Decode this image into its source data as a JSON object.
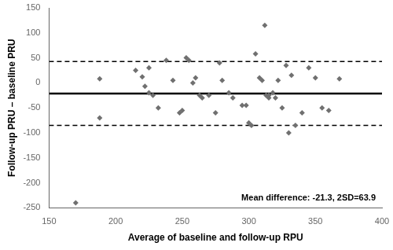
{
  "chart_data": {
    "type": "scatter",
    "x": [
      170,
      188,
      188,
      215,
      220,
      222,
      225,
      225,
      228,
      232,
      238,
      243,
      248,
      250,
      253,
      255,
      258,
      260,
      263,
      265,
      270,
      275,
      278,
      280,
      285,
      288,
      295,
      298,
      300,
      302,
      305,
      308,
      310,
      312,
      313,
      315,
      315,
      318,
      320,
      322,
      325,
      328,
      330,
      332,
      335,
      340,
      345,
      350,
      355,
      360,
      368
    ],
    "values": [
      -240,
      8,
      -70,
      25,
      12,
      -7,
      30,
      -20,
      -25,
      -50,
      45,
      5,
      -60,
      -55,
      50,
      45,
      0,
      10,
      -25,
      -30,
      -25,
      -60,
      40,
      5,
      -20,
      -30,
      -45,
      -45,
      -80,
      -85,
      58,
      10,
      5,
      115,
      -25,
      -30,
      -25,
      -20,
      -30,
      5,
      -50,
      35,
      -100,
      15,
      -85,
      -60,
      30,
      10,
      -50,
      -55,
      8
    ],
    "color": "#707070",
    "marker": "diamond",
    "reference_lines": [
      {
        "value": -21.3,
        "line_style": "solid",
        "color": "#000000"
      },
      {
        "value": 42.6,
        "line_style": "dashed",
        "color": "#000000"
      },
      {
        "value": -85.2,
        "line_style": "dashed",
        "color": "#000000"
      }
    ],
    "xlabel": "Average of baseline and follow-up RPU",
    "ylabel": "Follow-up PRU – baseline PRU",
    "annotation": "Mean difference: -21.3, 2SD=63.9",
    "xlim": [
      150,
      400
    ],
    "ylim": [
      -250,
      150
    ],
    "xticks": [
      150,
      200,
      250,
      300,
      350,
      400
    ],
    "yticks": [
      -250,
      -200,
      -150,
      -100,
      -50,
      0,
      50,
      100,
      150
    ],
    "grid": false
  }
}
